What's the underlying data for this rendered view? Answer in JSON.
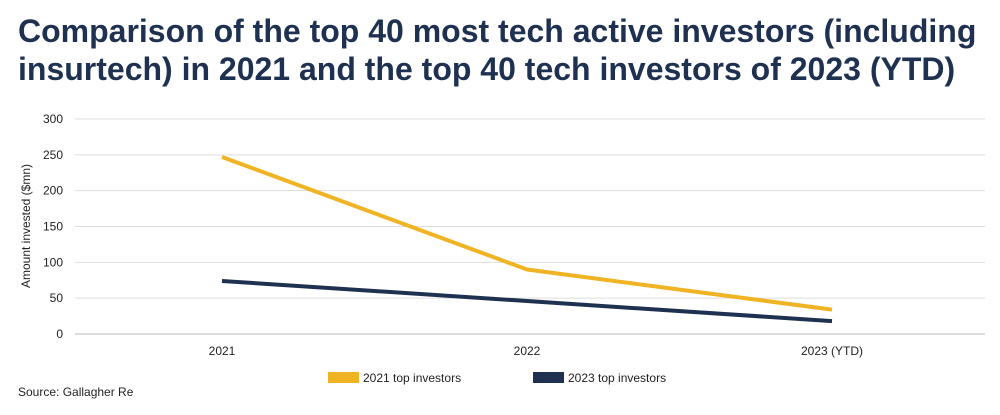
{
  "chart_data": {
    "type": "line",
    "title": "Comparison of the top 40 most tech active investors (including insurtech) in 2021 and the top 40 tech investors of 2023 (YTD)",
    "xlabel": "",
    "ylabel": "Amount invested ($mn)",
    "categories": [
      "2021",
      "2022",
      "2023 (YTD)"
    ],
    "ylim": [
      0,
      300
    ],
    "yticks": [
      0,
      50,
      100,
      150,
      200,
      250,
      300
    ],
    "grid": true,
    "legend_position": "bottom",
    "series": [
      {
        "name": "2021 top investors",
        "color": "#f0b323",
        "values": [
          247,
          90,
          34
        ]
      },
      {
        "name": "2023 top investors",
        "color": "#1f3151",
        "values": [
          74,
          46,
          18
        ]
      }
    ],
    "source": "Source: Gallagher Re"
  }
}
